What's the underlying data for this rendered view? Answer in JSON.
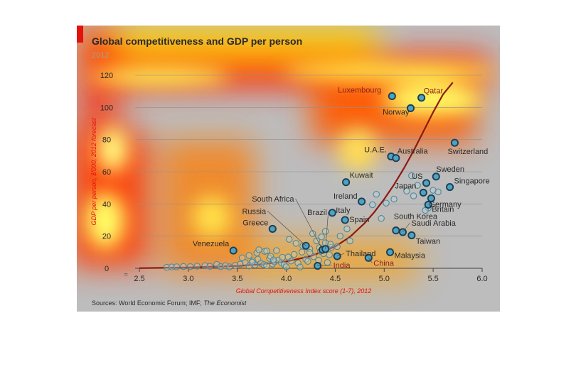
{
  "chart_data": {
    "type": "scatter",
    "title": "Global competitiveness and GDP per person",
    "subtitle": "2012",
    "xlabel": "Global Competitiveness Index score (1-7), 2012",
    "ylabel": "GDP per person, $'000, 2012 forecast",
    "xlim": [
      2.5,
      6.0
    ],
    "ylim": [
      0,
      120
    ],
    "x_ticks": [
      "2.5",
      "3.0",
      "3.5",
      "4.0",
      "4.5",
      "5.0",
      "5.5",
      "6.0"
    ],
    "x_tick_values": [
      2.5,
      3.0,
      3.5,
      4.0,
      4.5,
      5.0,
      5.5,
      6.0
    ],
    "y_ticks": [
      "0",
      "20",
      "40",
      "60",
      "80",
      "100",
      "120"
    ],
    "y_tick_values": [
      0,
      20,
      40,
      60,
      80,
      100,
      120
    ],
    "grid": "horizontal",
    "source": "Sources: World Economic Forum; IMF; ",
    "source_italic": "The Economist",
    "colors": {
      "accent": "#e3120b",
      "trend": "#8c1a0f",
      "point_fill": "#bcd6df",
      "point_stroke": "#4e8799",
      "highlight_fill": "#4ea3c2",
      "highlight_stroke": "#1d3f55",
      "text": "#2a2a2a",
      "subtitle": "#a7a08b",
      "overlay": "#bdbdbd"
    },
    "trendline": {
      "x": [
        2.5,
        3.0,
        3.5,
        3.75,
        4.0,
        4.25,
        4.5,
        4.65,
        4.8,
        4.9,
        5.0,
        5.1,
        5.2,
        5.3,
        5.4,
        5.5,
        5.6,
        5.7
      ],
      "y": [
        0.1,
        0.5,
        1.5,
        2.5,
        4.2,
        7.5,
        13.5,
        19.5,
        28,
        35,
        43,
        52,
        62,
        73,
        85,
        97,
        108,
        115.5
      ]
    },
    "labeled_points": [
      {
        "name": "Luxembourg",
        "x": 5.08,
        "y": 107,
        "color": "#8a1f1a"
      },
      {
        "name": "Qatar",
        "x": 5.38,
        "y": 106,
        "color": "#8a1f1a"
      },
      {
        "name": "Norway",
        "x": 5.27,
        "y": 99.5,
        "color": "#2a2a2a"
      },
      {
        "name": "U.A.E.",
        "x": 5.07,
        "y": 69.5,
        "color": "#2a2a2a"
      },
      {
        "name": "Australia",
        "x": 5.12,
        "y": 68.5,
        "color": "#2a2a2a"
      },
      {
        "name": "Switzerland",
        "x": 5.72,
        "y": 78,
        "color": "#2a2a2a"
      },
      {
        "name": "Sweden",
        "x": 5.53,
        "y": 57,
        "color": "#2a2a2a"
      },
      {
        "name": "Singapore",
        "x": 5.67,
        "y": 50.5,
        "color": "#2a2a2a"
      },
      {
        "name": "US",
        "x": 5.43,
        "y": 53,
        "color": "#2a2a2a"
      },
      {
        "name": "Japan",
        "x": 5.4,
        "y": 47,
        "color": "#2a2a2a"
      },
      {
        "name": "Germany",
        "x": 5.48,
        "y": 43.5,
        "color": "#2a2a2a"
      },
      {
        "name": "Britain",
        "x": 5.45,
        "y": 39.5,
        "color": "#2a2a2a"
      },
      {
        "name": "Kuwait",
        "x": 4.61,
        "y": 53.5,
        "color": "#2a2a2a"
      },
      {
        "name": "Ireland",
        "x": 4.77,
        "y": 41.5,
        "color": "#2a2a2a"
      },
      {
        "name": "Italy",
        "x": 4.47,
        "y": 34.5,
        "color": "#2a2a2a"
      },
      {
        "name": "Spain",
        "x": 4.6,
        "y": 30,
        "color": "#2a2a2a"
      },
      {
        "name": "South Korea",
        "x": 5.12,
        "y": 23.5,
        "color": "#2a2a2a"
      },
      {
        "name": "Saudi Arabia",
        "x": 5.19,
        "y": 22.5,
        "color": "#2a2a2a"
      },
      {
        "name": "Taiwan",
        "x": 5.28,
        "y": 20.5,
        "color": "#2a2a2a"
      },
      {
        "name": "Greece",
        "x": 3.86,
        "y": 24.5,
        "color": "#2a2a2a"
      },
      {
        "name": "South Africa",
        "x": 4.37,
        "y": 11.5,
        "color": "#2a2a2a"
      },
      {
        "name": "Russia",
        "x": 4.2,
        "y": 14,
        "color": "#2a2a2a"
      },
      {
        "name": "Brazil",
        "x": 4.4,
        "y": 12,
        "color": "#2a2a2a"
      },
      {
        "name": "Venezuela",
        "x": 3.46,
        "y": 11,
        "color": "#2a2a2a"
      },
      {
        "name": "Thailand",
        "x": 4.52,
        "y": 7.5,
        "color": "#2a2a2a"
      },
      {
        "name": "Malaysia",
        "x": 5.06,
        "y": 10,
        "color": "#2a2a2a"
      },
      {
        "name": "India",
        "x": 4.32,
        "y": 1.5,
        "color": "#8a1f1a"
      },
      {
        "name": "China",
        "x": 4.84,
        "y": 6.5,
        "color": "#8a1f1a"
      }
    ],
    "other_points": {
      "x": [
        2.78,
        2.83,
        2.88,
        2.95,
        3.02,
        3.09,
        3.17,
        3.22,
        3.29,
        3.33,
        3.38,
        3.42,
        3.48,
        3.53,
        3.58,
        3.62,
        3.66,
        3.68,
        3.71,
        3.74,
        3.77,
        3.8,
        3.83,
        3.86,
        3.88,
        3.92,
        3.95,
        3.98,
        4.02,
        4.05,
        4.08,
        4.12,
        4.16,
        4.2,
        4.24,
        4.28,
        4.33,
        4.38,
        4.42,
        4.46,
        3.55,
        3.62,
        3.7,
        3.78,
        3.84,
        3.9,
        3.96,
        4.03,
        4.1,
        4.17,
        4.24,
        4.31,
        4.36,
        4.27,
        4.45,
        3.72,
        3.8,
        3.87,
        4.0,
        4.14,
        4.34,
        4.44,
        3.65,
        4.22,
        4.4,
        4.55,
        4.62,
        4.65,
        4.4,
        4.52,
        4.35,
        4.92,
        4.88,
        4.97,
        5.02,
        5.1,
        5.23,
        5.28,
        5.34,
        5.45,
        5.5,
        5.55,
        5.42,
        5.3
      ],
      "y": [
        0.6,
        0.8,
        0.9,
        1.1,
        1.0,
        1.3,
        1.6,
        1.2,
        2.4,
        1.0,
        1.6,
        0.9,
        1.8,
        2.6,
        3.6,
        1.4,
        4.6,
        2.1,
        5.6,
        3.1,
        2.3,
        1.7,
        6.1,
        2.7,
        4.0,
        5.1,
        3.5,
        2.2,
        7.0,
        4.5,
        8.6,
        3.2,
        10.1,
        5.6,
        12.0,
        7.2,
        5.0,
        9.1,
        3.6,
        13.0,
        6.5,
        8.0,
        9.5,
        10.5,
        7.5,
        11.0,
        6.8,
        18.0,
        15.5,
        13.8,
        9.8,
        17.0,
        19.5,
        21.5,
        15.0,
        11.5,
        10.8,
        5.2,
        0.9,
        0.8,
        12.8,
        8.4,
        3.8,
        4.3,
        23.0,
        20.0,
        24.5,
        17.0,
        15.8,
        13.5,
        10.5,
        46.0,
        39.5,
        31.0,
        40.5,
        43.0,
        48.0,
        57.5,
        51.5,
        37.5,
        48.5,
        47.5,
        36.0,
        45.0
      ]
    }
  }
}
